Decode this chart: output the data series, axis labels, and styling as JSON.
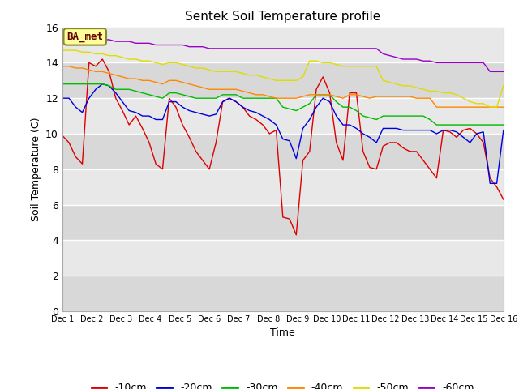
{
  "title": "Sentek Soil Temperature profile",
  "xlabel": "Time",
  "ylabel": "Soil Temperature (C)",
  "ylim": [
    0,
    16
  ],
  "yticks": [
    0,
    2,
    4,
    6,
    8,
    10,
    12,
    14,
    16
  ],
  "legend_label": "BA_met",
  "x_labels": [
    "Dec 1",
    "Dec 2",
    "Dec 3",
    "Dec 4",
    "Dec 5",
    "Dec 6",
    "Dec 7",
    "Dec 8",
    "Dec 9",
    "Dec 10",
    "Dec 11",
    "Dec 12",
    "Dec 13",
    "Dec 14",
    "Dec 15",
    "Dec 16"
  ],
  "colors": {
    "-10cm": "#dd0000",
    "-20cm": "#0000dd",
    "-30cm": "#00bb00",
    "-40cm": "#ff8800",
    "-50cm": "#dddd00",
    "-60cm": "#9900cc"
  },
  "band_colors": [
    "#d8d8d8",
    "#e8e8e8"
  ],
  "series": {
    "-10cm": [
      9.9,
      9.5,
      8.7,
      8.3,
      14.0,
      13.8,
      14.2,
      13.5,
      12.0,
      11.3,
      10.5,
      11.0,
      10.3,
      9.5,
      8.3,
      8.0,
      12.0,
      11.5,
      10.5,
      9.8,
      9.0,
      8.5,
      8.0,
      9.5,
      11.8,
      12.0,
      11.8,
      11.5,
      11.0,
      10.8,
      10.5,
      10.0,
      10.2,
      5.3,
      5.2,
      4.3,
      8.5,
      9.0,
      12.5,
      13.2,
      12.3,
      9.5,
      8.5,
      12.3,
      12.3,
      9.0,
      8.1,
      8.0,
      9.3,
      9.5,
      9.5,
      9.2,
      9.0,
      9.0,
      8.5,
      8.0,
      7.5,
      10.2,
      10.1,
      9.8,
      10.2,
      10.3,
      10.0,
      9.5,
      7.5,
      7.0,
      6.3
    ],
    "-20cm": [
      12.0,
      12.0,
      11.5,
      11.2,
      12.0,
      12.5,
      12.8,
      12.7,
      12.3,
      11.8,
      11.3,
      11.2,
      11.0,
      11.0,
      10.8,
      10.8,
      11.8,
      11.8,
      11.5,
      11.3,
      11.2,
      11.1,
      11.0,
      11.1,
      11.8,
      12.0,
      11.8,
      11.5,
      11.3,
      11.2,
      11.0,
      10.8,
      10.5,
      9.7,
      9.6,
      8.6,
      10.3,
      10.8,
      11.5,
      12.0,
      11.8,
      11.0,
      10.5,
      10.5,
      10.3,
      10.0,
      9.8,
      9.5,
      10.3,
      10.3,
      10.3,
      10.2,
      10.2,
      10.2,
      10.2,
      10.2,
      10.0,
      10.2,
      10.2,
      10.1,
      9.8,
      9.5,
      10.0,
      10.1,
      7.2,
      7.2,
      10.2
    ],
    "-30cm": [
      12.8,
      12.8,
      12.8,
      12.8,
      12.8,
      12.8,
      12.8,
      12.7,
      12.5,
      12.5,
      12.5,
      12.4,
      12.3,
      12.2,
      12.1,
      12.0,
      12.3,
      12.3,
      12.2,
      12.1,
      12.0,
      12.0,
      12.0,
      12.0,
      12.2,
      12.2,
      12.2,
      12.0,
      12.0,
      12.0,
      12.0,
      12.0,
      12.0,
      11.5,
      11.4,
      11.3,
      11.5,
      11.7,
      12.2,
      12.2,
      12.2,
      11.8,
      11.5,
      11.5,
      11.3,
      11.0,
      10.9,
      10.8,
      11.0,
      11.0,
      11.0,
      11.0,
      11.0,
      11.0,
      11.0,
      10.8,
      10.5,
      10.5,
      10.5,
      10.5,
      10.5,
      10.5,
      10.5,
      10.5,
      10.5,
      10.5,
      10.5
    ],
    "-40cm": [
      13.8,
      13.8,
      13.7,
      13.7,
      13.6,
      13.5,
      13.5,
      13.4,
      13.3,
      13.2,
      13.1,
      13.1,
      13.0,
      13.0,
      12.9,
      12.8,
      13.0,
      13.0,
      12.9,
      12.8,
      12.7,
      12.6,
      12.5,
      12.5,
      12.5,
      12.5,
      12.5,
      12.4,
      12.3,
      12.2,
      12.2,
      12.1,
      12.0,
      12.0,
      12.0,
      12.0,
      12.1,
      12.2,
      12.2,
      12.2,
      12.2,
      12.1,
      12.0,
      12.2,
      12.2,
      12.1,
      12.0,
      12.1,
      12.1,
      12.1,
      12.1,
      12.1,
      12.1,
      12.0,
      12.0,
      12.0,
      11.5,
      11.5,
      11.5,
      11.5,
      11.5,
      11.5,
      11.5,
      11.5,
      11.5,
      11.5,
      11.5
    ],
    "-50cm": [
      14.7,
      14.7,
      14.7,
      14.6,
      14.6,
      14.5,
      14.5,
      14.4,
      14.4,
      14.3,
      14.2,
      14.2,
      14.1,
      14.1,
      14.0,
      13.9,
      14.0,
      14.0,
      13.9,
      13.8,
      13.7,
      13.7,
      13.6,
      13.5,
      13.5,
      13.5,
      13.5,
      13.4,
      13.3,
      13.3,
      13.2,
      13.1,
      13.0,
      13.0,
      13.0,
      13.0,
      13.2,
      14.1,
      14.1,
      14.0,
      14.0,
      13.9,
      13.8,
      13.8,
      13.8,
      13.8,
      13.8,
      13.8,
      13.0,
      12.9,
      12.8,
      12.7,
      12.7,
      12.6,
      12.5,
      12.4,
      12.4,
      12.3,
      12.3,
      12.2,
      12.0,
      11.8,
      11.7,
      11.7,
      11.5,
      11.5,
      12.7
    ],
    "-60cm": [
      15.3,
      15.3,
      15.3,
      15.3,
      15.3,
      15.3,
      15.3,
      15.3,
      15.2,
      15.2,
      15.2,
      15.1,
      15.1,
      15.1,
      15.0,
      15.0,
      15.0,
      15.0,
      15.0,
      14.9,
      14.9,
      14.9,
      14.8,
      14.8,
      14.8,
      14.8,
      14.8,
      14.8,
      14.8,
      14.8,
      14.8,
      14.8,
      14.8,
      14.8,
      14.8,
      14.8,
      14.8,
      14.8,
      14.8,
      14.8,
      14.8,
      14.8,
      14.8,
      14.8,
      14.8,
      14.8,
      14.8,
      14.8,
      14.5,
      14.4,
      14.3,
      14.2,
      14.2,
      14.2,
      14.1,
      14.1,
      14.0,
      14.0,
      14.0,
      14.0,
      14.0,
      14.0,
      14.0,
      14.0,
      13.5,
      13.5,
      13.5
    ]
  }
}
